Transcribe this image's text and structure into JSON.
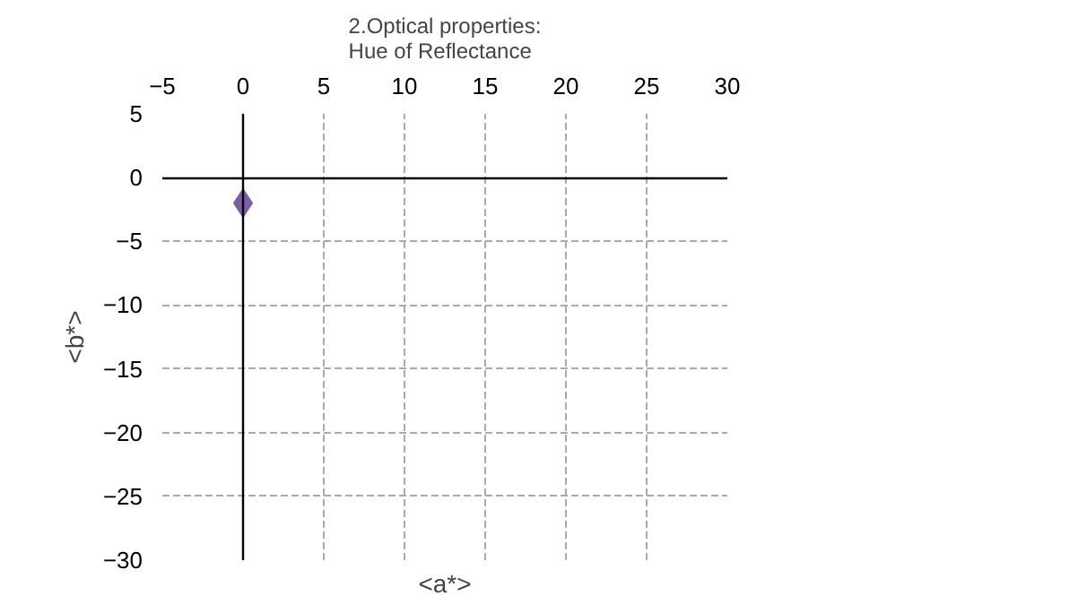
{
  "chart_data": {
    "type": "scatter",
    "title": "2.Optical properties:\nHue of Reflectance",
    "xlabel": "<a*>",
    "ylabel": "<b*>",
    "x": [
      0
    ],
    "series": [
      {
        "color": "#7b5ea7",
        "values": [
          -2
        ]
      }
    ],
    "xlim": [
      -5,
      30
    ],
    "xticks": [
      -5,
      0,
      5,
      10,
      15,
      20,
      25,
      30
    ],
    "ylim": [
      -30,
      5
    ],
    "yticks": [
      5,
      0,
      -5,
      -10,
      -15,
      -20,
      -25,
      -30
    ],
    "grid": true,
    "marker": "diamond"
  }
}
